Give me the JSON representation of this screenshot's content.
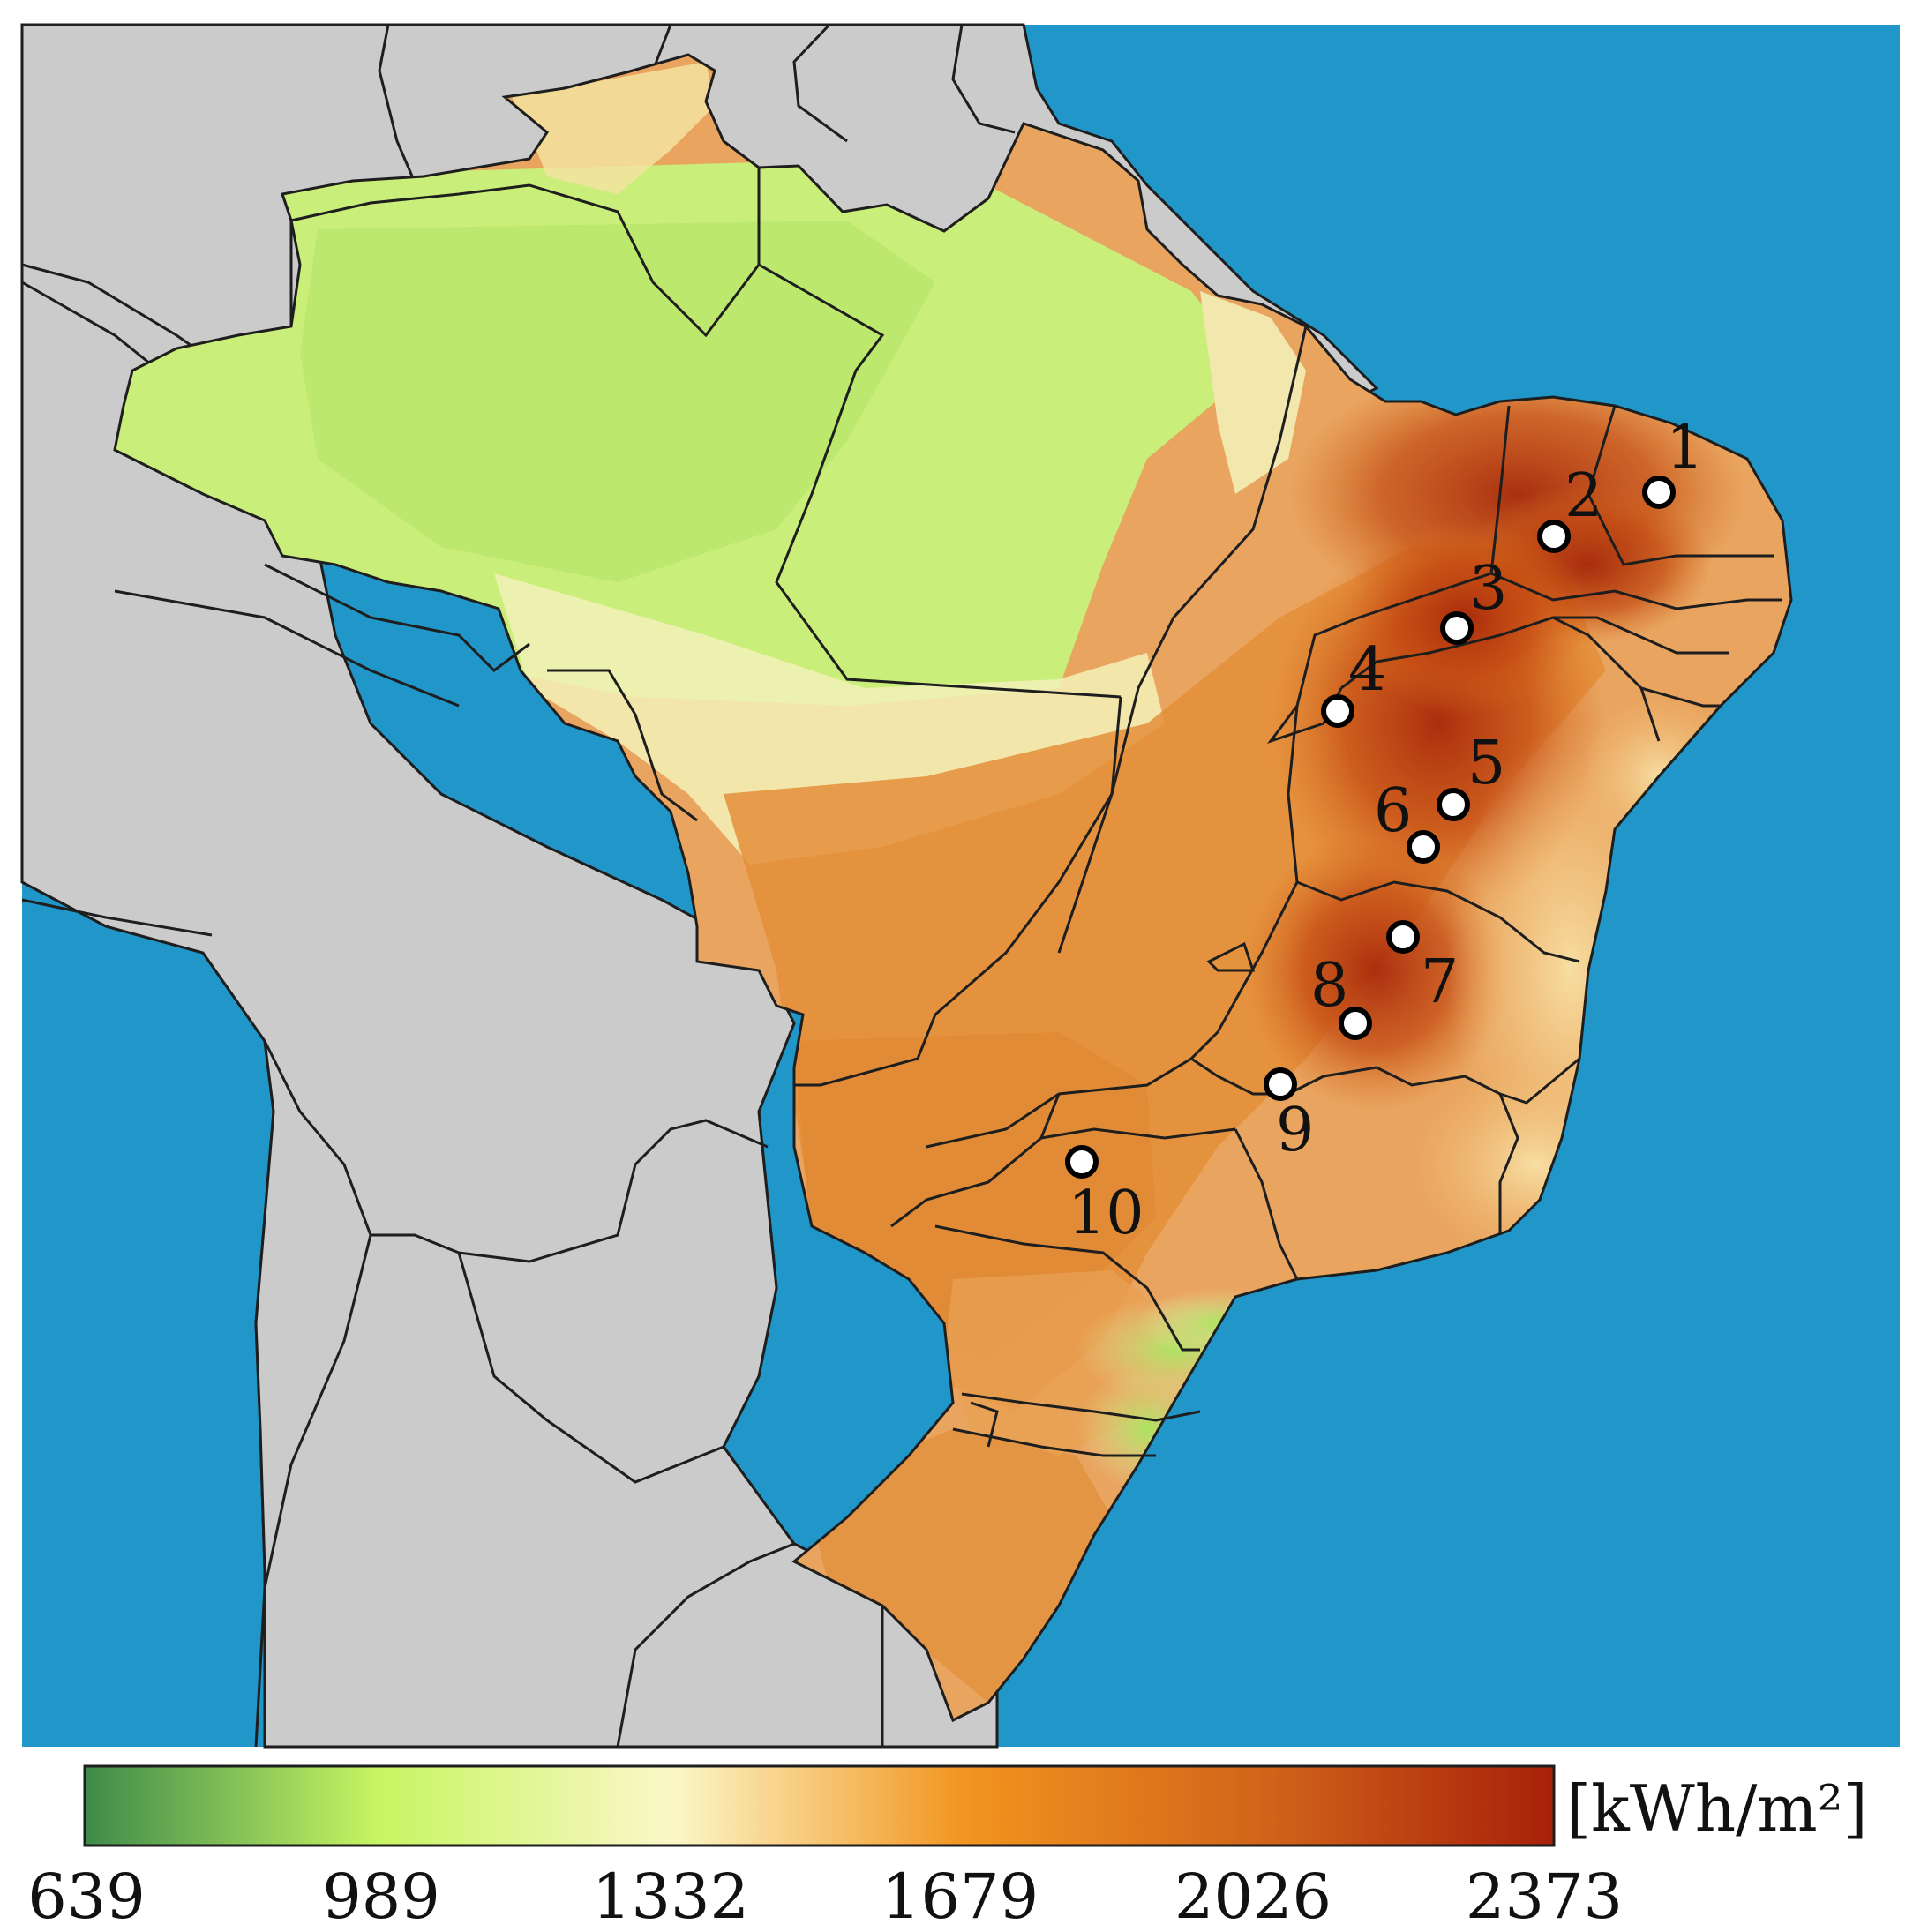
{
  "map": {
    "colors": {
      "ocean": "#2196C8",
      "land_outside": "#CBCBCB",
      "border": "#1E1E1E",
      "site_fill": "#FFFFFF",
      "site_stroke": "#000000"
    },
    "sites": [
      {
        "label": "1"
      },
      {
        "label": "2"
      },
      {
        "label": "3"
      },
      {
        "label": "4"
      },
      {
        "label": "5"
      },
      {
        "label": "6"
      },
      {
        "label": "7"
      },
      {
        "label": "8"
      },
      {
        "label": "9"
      },
      {
        "label": "10"
      }
    ]
  },
  "colorbar": {
    "unit": "[kWh/m²]",
    "ticks": [
      "639",
      "989",
      "1332",
      "1679",
      "2026",
      "2373"
    ],
    "min": 639,
    "max": 2373,
    "gradient": [
      "#3D8A4A",
      "#C8F562",
      "#FBF7C8",
      "#F2941F",
      "#D2651A",
      "#A8200A"
    ]
  }
}
